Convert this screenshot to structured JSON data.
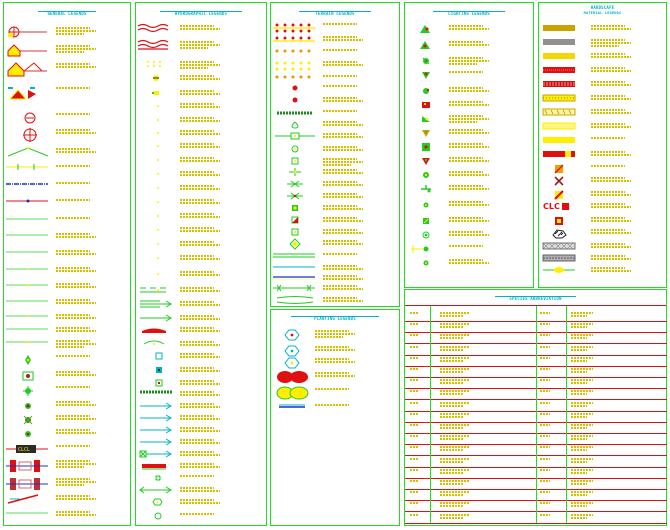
{
  "panels": {
    "general": {
      "title": "GENERAL LEGENDS"
    },
    "hydro": {
      "title": "HYDROGRAPHIC LEGENDS"
    },
    "terrain": {
      "title": "TERRAIN LEGENDS"
    },
    "outline": {
      "title": "PLANTING LEGENDS"
    },
    "lighting": {
      "title": "LIGHTING LEGENDS"
    },
    "material": {
      "title": "HARDSCAPE",
      "subtitle": "MATERIAL LEGENDS"
    },
    "abbrev": {
      "title": "SPECIES ABBREVIATION"
    }
  },
  "misc": {
    "clc": "CLC",
    "legend_small": "CLC"
  },
  "colors": {
    "border": "#22dd22",
    "title": "#00b3c8",
    "label": "#c8b400",
    "red": "#e01010",
    "blue": "#1830d0",
    "yellow": "#ffee00"
  }
}
